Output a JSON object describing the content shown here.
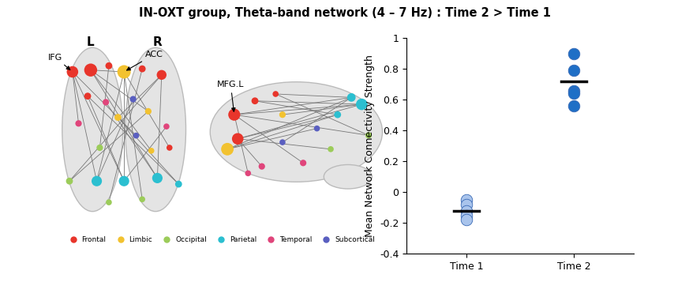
{
  "title": "IN-OXT group, Theta-band network (4 – 7 Hz) : Time 2 > Time 1",
  "brain_panel": {
    "hemisphere_labels": [
      "L",
      "R"
    ],
    "region_labels": [
      "IFG",
      "ACC",
      "MFG.L"
    ],
    "legend": [
      {
        "name": "Frontal",
        "color": "#e8352b"
      },
      {
        "name": "Limbic",
        "color": "#f2c230"
      },
      {
        "name": "Occipital",
        "color": "#9ccc5a"
      },
      {
        "name": "Parietal",
        "color": "#2bbfd0"
      },
      {
        "name": "Temporal",
        "color": "#e0457b"
      },
      {
        "name": "Subcortical",
        "color": "#5a5fc0"
      }
    ]
  },
  "chart_data": {
    "type": "scatter",
    "categories": [
      "Time 1",
      "Time 2"
    ],
    "values": [
      [
        -0.05,
        -0.08,
        -0.12,
        -0.15,
        -0.18
      ],
      [
        0.9,
        0.79,
        0.66,
        0.64,
        0.56
      ]
    ],
    "means": [
      -0.12,
      0.72
    ],
    "colors": [
      "#a9c4ec",
      "#1f6fc6"
    ],
    "ylabel": "Mean Network Connectivity Strength",
    "ylim": [
      -0.4,
      1
    ],
    "yticks": [
      -0.4,
      -0.2,
      0,
      0.2,
      0.4,
      0.6,
      0.8,
      1
    ]
  }
}
